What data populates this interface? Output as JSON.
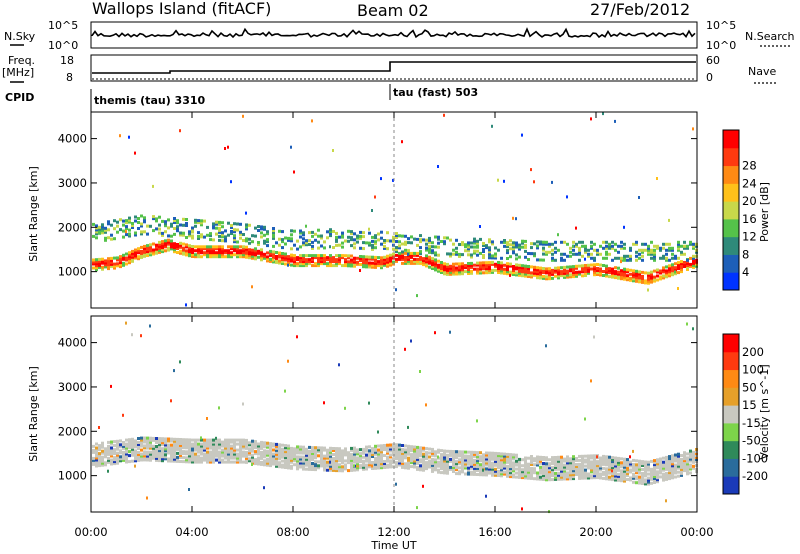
{
  "header": {
    "station": "Wallops Island (fitACF)",
    "beam": "Beam 02",
    "date": "27/Feb/2012"
  },
  "top_panels": {
    "nsky_label": "N.Sky",
    "nsky_ticks": [
      "10^5",
      "10^0"
    ],
    "nsearch_label": "N.Search",
    "nsearch_ticks": [
      "10^5",
      "10^0"
    ],
    "freq_label": "Freq.",
    "freq_unit": "[MHz]",
    "freq_ticks": [
      "18",
      "8"
    ],
    "nave_label": "Nave",
    "nave_ticks": [
      "60",
      "0"
    ],
    "cpid_label": "CPID",
    "cpid_segments": [
      {
        "name": "themis (tau) 3310",
        "start_hour": 0
      },
      {
        "name": "tau (fast) 503",
        "start_hour": 12
      }
    ]
  },
  "x_axis": {
    "label": "Time UT",
    "ticks": [
      "00:00",
      "04:00",
      "08:00",
      "12:00",
      "16:00",
      "20:00",
      "00:00"
    ]
  },
  "chart_data": [
    {
      "type": "heatmap",
      "name": "power",
      "ylabel": "Slant Range [km]",
      "yticks": [
        1000,
        2000,
        3000,
        4000
      ],
      "ylim": [
        180,
        4600
      ],
      "xlim_hours": [
        0,
        24
      ],
      "colorbar": {
        "label": "Power [dB]",
        "ticks": [
          "4",
          "8",
          "12",
          "16",
          "20",
          "24",
          "28"
        ],
        "colors": [
          "#0033ff",
          "#1d5fb8",
          "#2f8a7a",
          "#55c24a",
          "#c8d84a",
          "#ffc11a",
          "#ff8a14",
          "#ff3a10",
          "#ff0000"
        ]
      },
      "bands": [
        {
          "name": "main-echo",
          "value_db": 26,
          "points": [
            [
              0,
              1200
            ],
            [
              1,
              1250
            ],
            [
              2,
              1500
            ],
            [
              3,
              1650
            ],
            [
              4,
              1500
            ],
            [
              6,
              1500
            ],
            [
              8,
              1300
            ],
            [
              10,
              1300
            ],
            [
              11.5,
              1250
            ],
            [
              12,
              1350
            ],
            [
              13,
              1350
            ],
            [
              14,
              1100
            ],
            [
              16,
              1150
            ],
            [
              18,
              1000
            ],
            [
              20,
              1100
            ],
            [
              22,
              900
            ],
            [
              24,
              1300
            ]
          ]
        },
        {
          "name": "upper-scatter",
          "value_db": 12,
          "points": [
            [
              0,
              1900
            ],
            [
              2,
              2100
            ],
            [
              4,
              2000
            ],
            [
              6,
              1900
            ],
            [
              8,
              1750
            ],
            [
              10,
              1800
            ],
            [
              12,
              1700
            ],
            [
              14,
              1600
            ],
            [
              16,
              1550
            ],
            [
              18,
              1500
            ],
            [
              20,
              1500
            ],
            [
              22,
              1500
            ],
            [
              24,
              1500
            ]
          ]
        }
      ]
    },
    {
      "type": "heatmap",
      "name": "velocity",
      "ylabel": "Slant Range [km]",
      "yticks": [
        1000,
        2000,
        3000,
        4000
      ],
      "ylim": [
        180,
        4600
      ],
      "xlim_hours": [
        0,
        24
      ],
      "colorbar": {
        "label": "Velocity [m s^-1]",
        "ticks": [
          "200",
          "100",
          "50",
          "15",
          "-15",
          "-50",
          "-100",
          "-200"
        ],
        "colors": [
          "#1a3ab8",
          "#2a6c9c",
          "#2f8a5a",
          "#7dd44a",
          "#c8c8c0",
          "#e6a02a",
          "#ff8a14",
          "#ff3a10",
          "#ff0000"
        ]
      },
      "bands": [
        {
          "name": "ground-scatter",
          "value_ms": 0,
          "points": [
            [
              0,
              1500
            ],
            [
              2,
              1650
            ],
            [
              4,
              1600
            ],
            [
              6,
              1600
            ],
            [
              8,
              1450
            ],
            [
              10,
              1400
            ],
            [
              12,
              1500
            ],
            [
              14,
              1350
            ],
            [
              16,
              1300
            ],
            [
              18,
              1200
            ],
            [
              20,
              1250
            ],
            [
              22,
              1100
            ],
            [
              24,
              1400
            ]
          ]
        }
      ]
    }
  ]
}
